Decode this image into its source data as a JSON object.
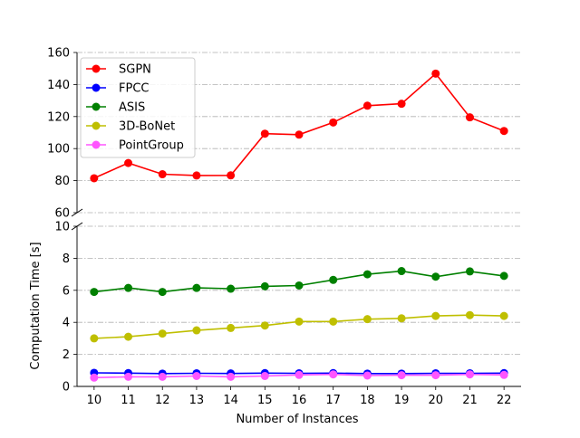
{
  "chart_data": {
    "type": "line",
    "xlabel": "Number of Instances",
    "ylabel": "Computation Time [s]",
    "x": [
      10,
      11,
      12,
      13,
      14,
      15,
      16,
      17,
      18,
      19,
      20,
      21,
      22
    ],
    "x_ticks": [
      "10",
      "11",
      "12",
      "13",
      "14",
      "15",
      "16",
      "17",
      "18",
      "19",
      "20",
      "21",
      "22"
    ],
    "broken_axis": true,
    "upper_panel": {
      "ylim": [
        60,
        160
      ],
      "y_ticks": [
        "60",
        "80",
        "100",
        "120",
        "140",
        "160"
      ]
    },
    "lower_panel": {
      "ylim": [
        0,
        10
      ],
      "y_ticks": [
        "0",
        "2",
        "4",
        "6",
        "8",
        "10"
      ]
    },
    "grid": "horizontal dash-dot",
    "legend_position": "top-left",
    "series": [
      {
        "name": "SGPN",
        "color": "#ff0000",
        "panel": "upper",
        "values": [
          81.5,
          91,
          84,
          83.2,
          83.3,
          109.3,
          108.7,
          116.3,
          126.8,
          128,
          146.8,
          119.5,
          111
        ]
      },
      {
        "name": "FPCC",
        "color": "#0000ff",
        "panel": "lower",
        "values": [
          0.85,
          0.83,
          0.8,
          0.82,
          0.81,
          0.83,
          0.82,
          0.83,
          0.8,
          0.8,
          0.82,
          0.82,
          0.83
        ]
      },
      {
        "name": "ASIS",
        "color": "#008000",
        "panel": "lower",
        "values": [
          5.9,
          6.15,
          5.9,
          6.15,
          6.1,
          6.25,
          6.3,
          6.65,
          7.0,
          7.2,
          6.85,
          7.18,
          6.9
        ]
      },
      {
        "name": "3D-BoNet",
        "color": "#bfbf00",
        "panel": "lower",
        "values": [
          3.0,
          3.1,
          3.3,
          3.5,
          3.65,
          3.8,
          4.05,
          4.05,
          4.2,
          4.25,
          4.4,
          4.45,
          4.4
        ]
      },
      {
        "name": "PointGroup",
        "color": "#ff55ff",
        "panel": "lower",
        "values": [
          0.55,
          0.6,
          0.6,
          0.65,
          0.6,
          0.65,
          0.72,
          0.75,
          0.68,
          0.7,
          0.7,
          0.75,
          0.72
        ]
      }
    ]
  }
}
